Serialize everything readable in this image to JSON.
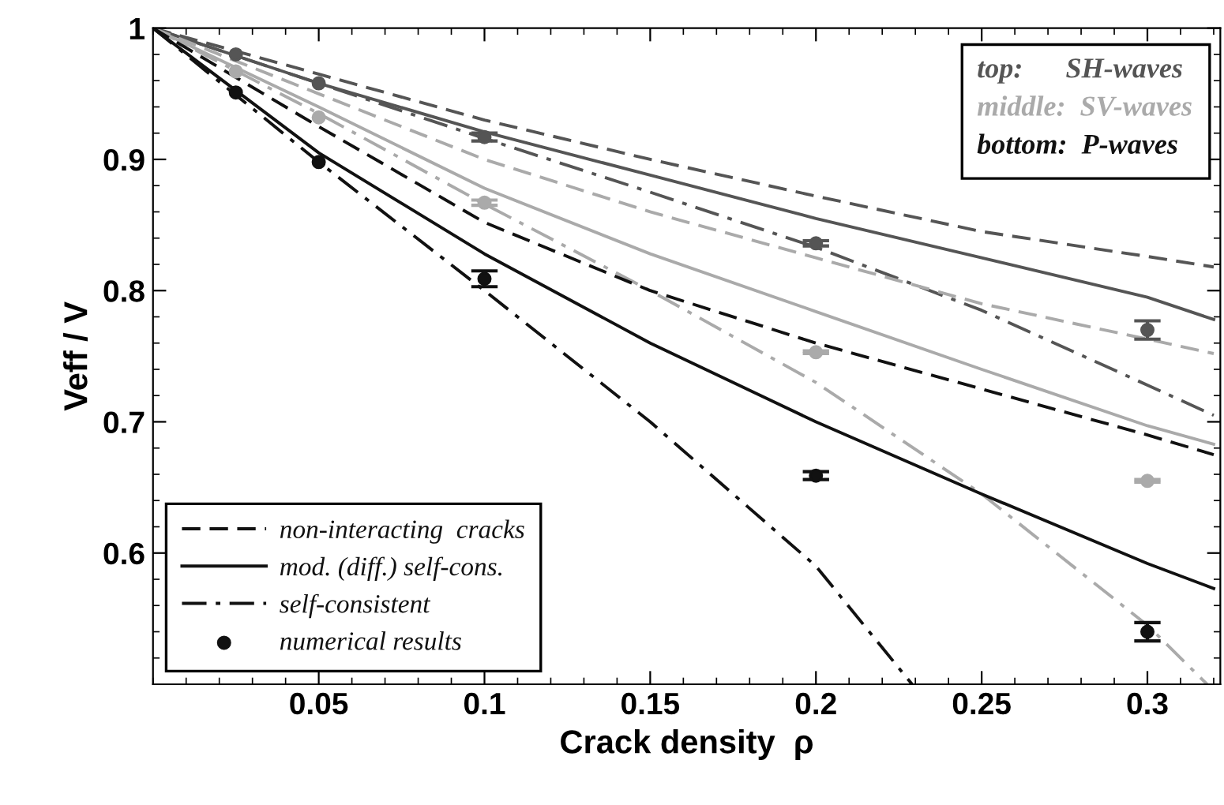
{
  "chart_data": {
    "type": "line",
    "xlabel": "Crack density  ρ",
    "ylabel": "Veff / V",
    "xlim": [
      0,
      0.322
    ],
    "ylim": [
      0.5,
      1
    ],
    "xticks": [
      0.05,
      0.1,
      0.15,
      0.2,
      0.25,
      0.3
    ],
    "yticks": [
      0.6,
      0.7,
      0.8,
      0.9,
      1
    ],
    "grid": false,
    "legend": "bottom left",
    "annotations": [
      "top:      SH-waves",
      "middle:  SV-waves",
      "bottom:  P-waves"
    ],
    "series": [
      {
        "type": "line",
        "line_style": "dashed",
        "color": "#555555",
        "x": [
          0,
          0.05,
          0.1,
          0.15,
          0.2,
          0.25,
          0.3,
          0.32
        ],
        "values": [
          1,
          0.965,
          0.93,
          0.9,
          0.872,
          0.845,
          0.826,
          0.818
        ]
      },
      {
        "type": "line",
        "line_style": "solid",
        "color": "#555555",
        "x": [
          0,
          0.05,
          0.1,
          0.15,
          0.2,
          0.25,
          0.3,
          0.32
        ],
        "values": [
          1,
          0.958,
          0.921,
          0.888,
          0.855,
          0.825,
          0.795,
          0.778
        ]
      },
      {
        "type": "line",
        "line_style": "dashdot",
        "color": "#555555",
        "x": [
          0,
          0.05,
          0.1,
          0.15,
          0.2,
          0.25,
          0.3,
          0.32
        ],
        "values": [
          1,
          0.958,
          0.916,
          0.875,
          0.833,
          0.785,
          0.728,
          0.705
        ]
      },
      {
        "type": "line",
        "line_style": "dashed",
        "color": "#aaaaaa",
        "x": [
          0,
          0.05,
          0.1,
          0.15,
          0.2,
          0.25,
          0.3,
          0.32
        ],
        "values": [
          1,
          0.95,
          0.9,
          0.86,
          0.825,
          0.79,
          0.763,
          0.752
        ]
      },
      {
        "type": "line",
        "line_style": "solid",
        "color": "#aaaaaa",
        "x": [
          0,
          0.05,
          0.1,
          0.15,
          0.2,
          0.25,
          0.3,
          0.32
        ],
        "values": [
          1,
          0.94,
          0.878,
          0.828,
          0.784,
          0.74,
          0.697,
          0.683
        ]
      },
      {
        "type": "line",
        "line_style": "dashdot",
        "color": "#aaaaaa",
        "x": [
          0,
          0.05,
          0.1,
          0.15,
          0.2,
          0.25,
          0.3,
          0.318
        ],
        "values": [
          1,
          0.935,
          0.866,
          0.8,
          0.73,
          0.645,
          0.545,
          0.5
        ]
      },
      {
        "type": "line",
        "line_style": "dashed",
        "color": "#111111",
        "name": "non-interacting  cracks",
        "x": [
          0,
          0.05,
          0.1,
          0.15,
          0.2,
          0.25,
          0.3,
          0.32
        ],
        "values": [
          1,
          0.925,
          0.852,
          0.8,
          0.76,
          0.725,
          0.69,
          0.675
        ]
      },
      {
        "type": "line",
        "line_style": "solid",
        "color": "#111111",
        "name": "mod. (diff.) self-cons.",
        "x": [
          0,
          0.05,
          0.1,
          0.15,
          0.2,
          0.25,
          0.3,
          0.32
        ],
        "values": [
          1,
          0.905,
          0.828,
          0.76,
          0.7,
          0.645,
          0.592,
          0.573
        ]
      },
      {
        "type": "line",
        "line_style": "dashdot",
        "color": "#111111",
        "name": "self-consistent",
        "x": [
          0,
          0.05,
          0.1,
          0.15,
          0.2,
          0.229
        ],
        "values": [
          1,
          0.898,
          0.8,
          0.7,
          0.59,
          0.5
        ]
      },
      {
        "type": "scatter",
        "marker": "circle",
        "color": "#555555",
        "x": [
          0.025,
          0.05,
          0.1,
          0.2,
          0.3
        ],
        "values": [
          0.98,
          0.958,
          0.917,
          0.836,
          0.77
        ],
        "errors": [
          null,
          null,
          0.003,
          0.002,
          0.007
        ]
      },
      {
        "type": "scatter",
        "marker": "circle",
        "color": "#aaaaaa",
        "x": [
          0.025,
          0.05,
          0.1,
          0.2,
          0.3
        ],
        "values": [
          0.967,
          0.932,
          0.867,
          0.753,
          0.655
        ],
        "errors": [
          null,
          null,
          0.002,
          0.001,
          0.001
        ]
      },
      {
        "type": "scatter",
        "marker": "circle",
        "color": "#111111",
        "name": "numerical results",
        "x": [
          0.025,
          0.05,
          0.1,
          0.2,
          0.3
        ],
        "values": [
          0.951,
          0.898,
          0.809,
          0.659,
          0.54
        ],
        "errors": [
          null,
          null,
          0.006,
          0.003,
          0.007
        ]
      }
    ]
  }
}
